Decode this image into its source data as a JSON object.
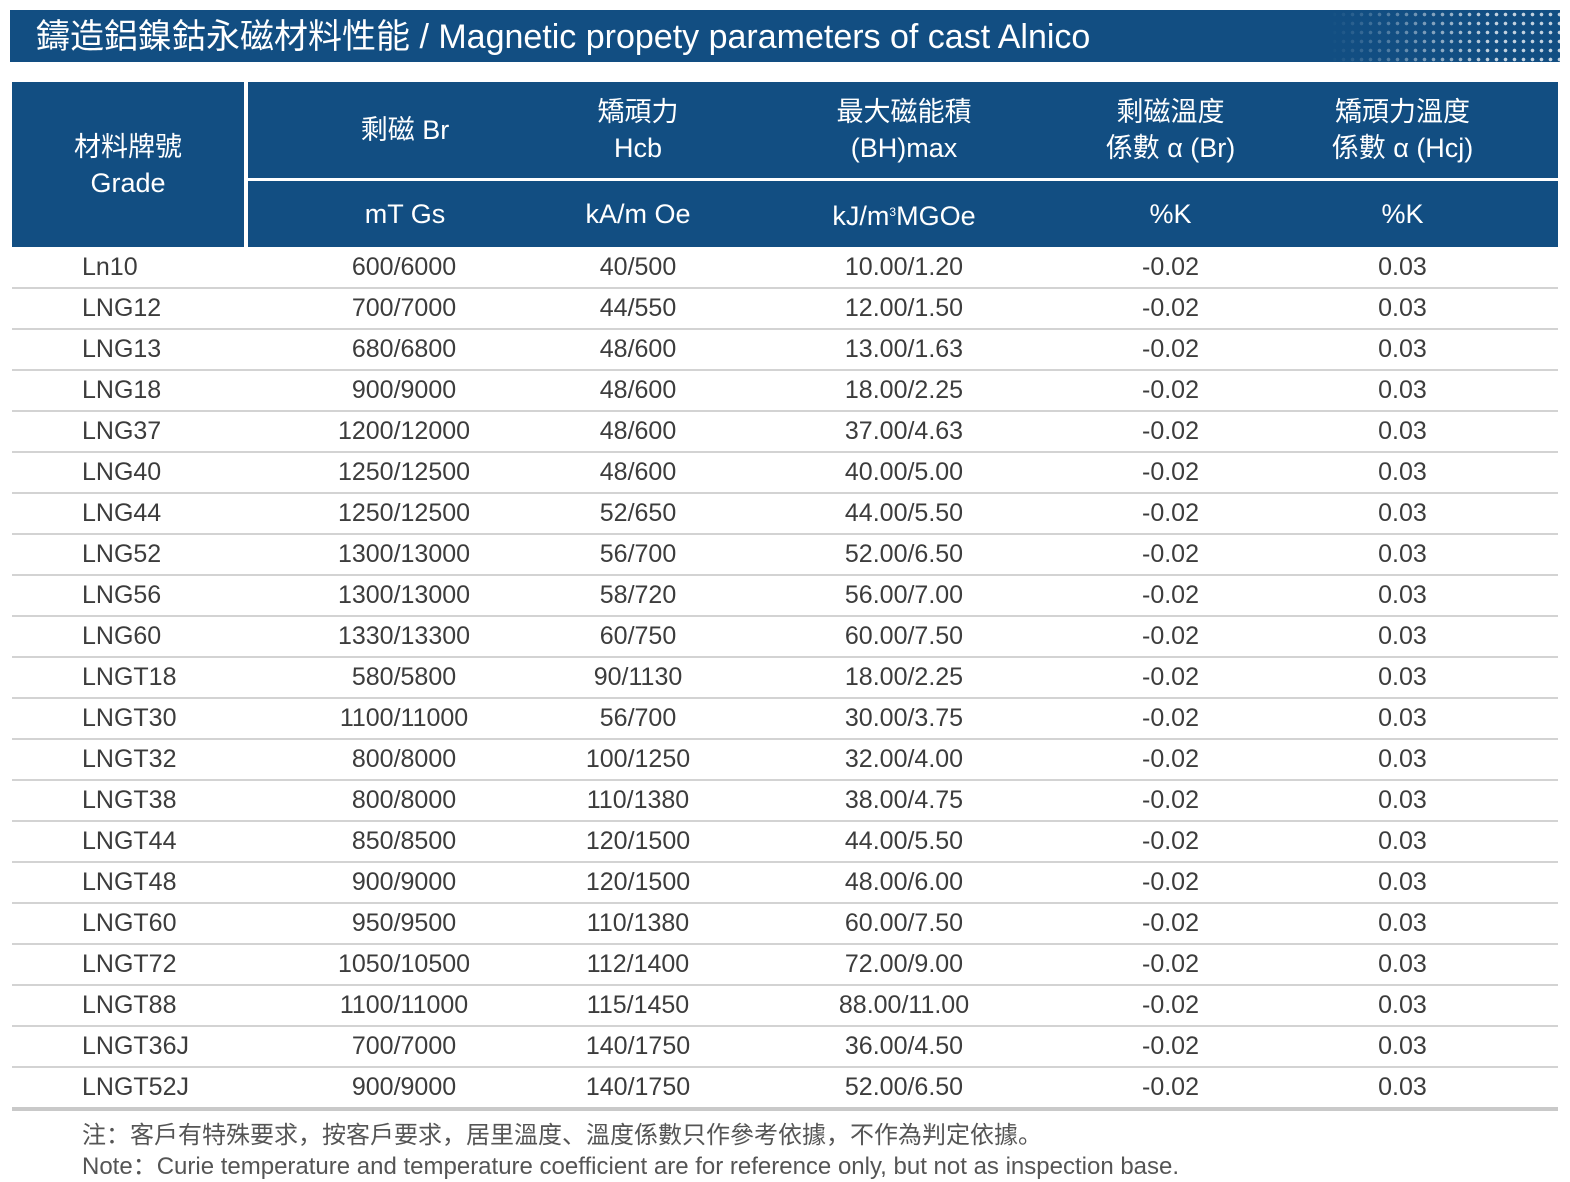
{
  "title": "鑄造鋁鎳鈷永磁材料性能 / Magnetic propety parameters of cast Alnico",
  "header": {
    "grade_cn": "材料牌號",
    "grade_en": "Grade",
    "br": "剩磁 Br",
    "hcb_cn": "矯頑力",
    "hcb_en": "Hcb",
    "bh_cn": "最大磁能積",
    "bh_en": "(BH)max",
    "abr_cn": "剩磁溫度",
    "abr_en": "係數 α (Br)",
    "ahcj_cn": "矯頑力溫度",
    "ahcj_en": "係數 α (Hcj)",
    "unit_br": "mT Gs",
    "unit_hcb": "kA/m Oe",
    "unit_bh_a": "kJ/m",
    "unit_bh_sup": "3",
    "unit_bh_b": "MGOe",
    "unit_abr": "%K",
    "unit_ahcj": "%K"
  },
  "rows": [
    [
      "Ln10",
      "600/6000",
      "40/500",
      "10.00/1.20",
      "-0.02",
      "0.03"
    ],
    [
      "LNG12",
      "700/7000",
      "44/550",
      "12.00/1.50",
      "-0.02",
      "0.03"
    ],
    [
      "LNG13",
      "680/6800",
      "48/600",
      "13.00/1.63",
      "-0.02",
      "0.03"
    ],
    [
      "LNG18",
      "900/9000",
      "48/600",
      "18.00/2.25",
      "-0.02",
      "0.03"
    ],
    [
      "LNG37",
      "1200/12000",
      "48/600",
      "37.00/4.63",
      "-0.02",
      "0.03"
    ],
    [
      "LNG40",
      "1250/12500",
      "48/600",
      "40.00/5.00",
      "-0.02",
      "0.03"
    ],
    [
      "LNG44",
      "1250/12500",
      "52/650",
      "44.00/5.50",
      "-0.02",
      "0.03"
    ],
    [
      "LNG52",
      "1300/13000",
      "56/700",
      "52.00/6.50",
      "-0.02",
      "0.03"
    ],
    [
      "LNG56",
      "1300/13000",
      "58/720",
      "56.00/7.00",
      "-0.02",
      "0.03"
    ],
    [
      "LNG60",
      "1330/13300",
      "60/750",
      "60.00/7.50",
      "-0.02",
      "0.03"
    ],
    [
      "LNGT18",
      "580/5800",
      "90/1130",
      "18.00/2.25",
      "-0.02",
      "0.03"
    ],
    [
      "LNGT30",
      "1100/11000",
      "56/700",
      "30.00/3.75",
      "-0.02",
      "0.03"
    ],
    [
      "LNGT32",
      "800/8000",
      "100/1250",
      "32.00/4.00",
      "-0.02",
      "0.03"
    ],
    [
      "LNGT38",
      "800/8000",
      "110/1380",
      "38.00/4.75",
      "-0.02",
      "0.03"
    ],
    [
      "LNGT44",
      "850/8500",
      "120/1500",
      "44.00/5.50",
      "-0.02",
      "0.03"
    ],
    [
      "LNGT48",
      "900/9000",
      "120/1500",
      "48.00/6.00",
      "-0.02",
      "0.03"
    ],
    [
      "LNGT60",
      "950/9500",
      "110/1380",
      "60.00/7.50",
      "-0.02",
      "0.03"
    ],
    [
      "LNGT72",
      "1050/10500",
      "112/1400",
      "72.00/9.00",
      "-0.02",
      "0.03"
    ],
    [
      "LNGT88",
      "1100/11000",
      "115/1450",
      "88.00/11.00",
      "-0.02",
      "0.03"
    ],
    [
      "LNGT36J",
      "700/7000",
      "140/1750",
      "36.00/4.50",
      "-0.02",
      "0.03"
    ],
    [
      "LNGT52J",
      "900/9000",
      "140/1750",
      "52.00/6.50",
      "-0.02",
      "0.03"
    ]
  ],
  "notes": {
    "cn": "注：客戶有特殊要求，按客戶要求，居里溫度、溫度係數只作參考依據，不作為判定依據。",
    "en": "Note：Curie temperature and temperature coefficient are for reference only, but not as inspection base."
  }
}
